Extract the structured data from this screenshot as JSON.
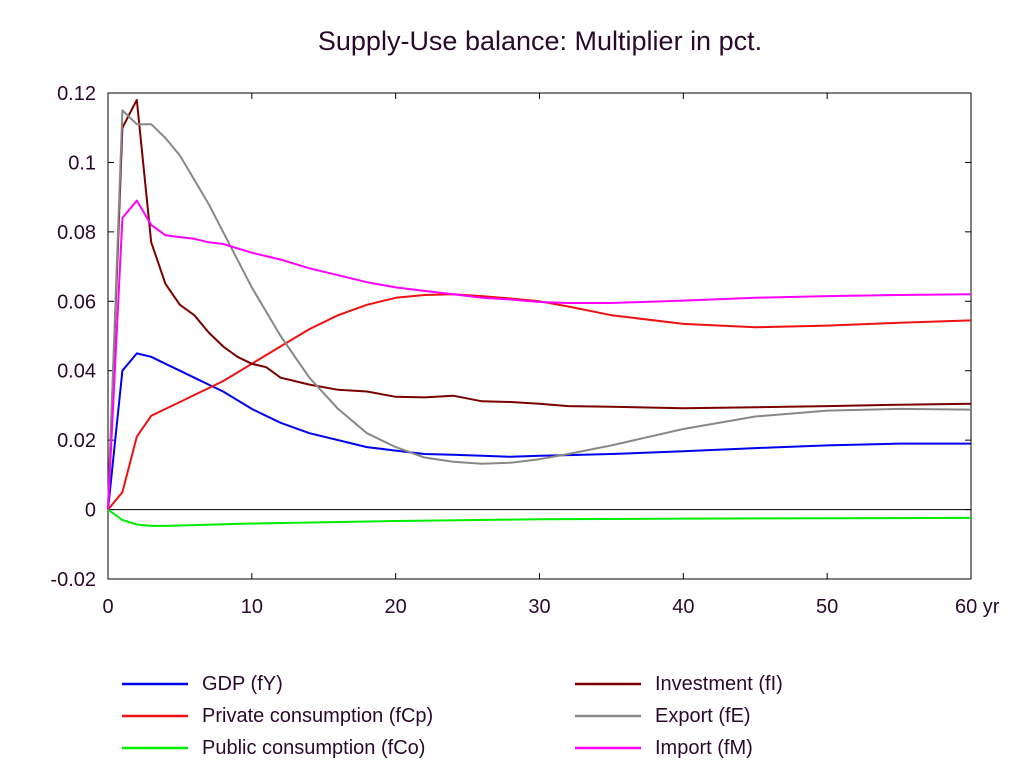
{
  "chart_data": {
    "type": "line",
    "title": "Supply-Use balance: Multiplier in pct.",
    "xlabel": "",
    "ylabel": "",
    "xlim": [
      0,
      60
    ],
    "ylim": [
      -0.02,
      0.12
    ],
    "x_ticks": [
      0,
      10,
      20,
      30,
      40,
      50,
      60
    ],
    "x_tick_labels": [
      "0",
      "10",
      "20",
      "30",
      "40",
      "50",
      "60 yr"
    ],
    "y_ticks": [
      -0.02,
      0,
      0.02,
      0.04,
      0.06,
      0.08,
      0.1,
      0.12
    ],
    "y_tick_labels": [
      "-0.02",
      "0",
      "0.02",
      "0.04",
      "0.06",
      "0.08",
      "0.1",
      "0.12"
    ],
    "grid": false,
    "zero_line": true,
    "legend_position": "bottom",
    "series": [
      {
        "name": "GDP (fY)",
        "color": "#0000ee",
        "x": [
          0,
          1,
          2,
          3,
          4,
          5,
          6,
          7,
          8,
          10,
          12,
          14,
          16,
          18,
          20,
          22,
          24,
          26,
          28,
          30,
          32,
          35,
          40,
          45,
          50,
          55,
          60
        ],
        "y": [
          0,
          0.04,
          0.045,
          0.044,
          0.042,
          0.04,
          0.038,
          0.036,
          0.034,
          0.029,
          0.025,
          0.022,
          0.02,
          0.018,
          0.017,
          0.016,
          0.0158,
          0.0155,
          0.0152,
          0.0155,
          0.0157,
          0.016,
          0.0168,
          0.0177,
          0.0185,
          0.019,
          0.019
        ]
      },
      {
        "name": "Private consumption (fCp)",
        "color": "#ee1111",
        "x": [
          0,
          1,
          2,
          3,
          4,
          5,
          6,
          7,
          8,
          10,
          12,
          14,
          16,
          18,
          20,
          22,
          24,
          26,
          28,
          30,
          32,
          35,
          40,
          45,
          50,
          55,
          60
        ],
        "y": [
          0,
          0.005,
          0.021,
          0.027,
          0.029,
          0.031,
          0.033,
          0.035,
          0.037,
          0.042,
          0.047,
          0.052,
          0.056,
          0.059,
          0.061,
          0.0618,
          0.062,
          0.0615,
          0.0608,
          0.06,
          0.0585,
          0.056,
          0.0535,
          0.0525,
          0.053,
          0.0538,
          0.0545
        ]
      },
      {
        "name": "Public consumption (fCo)",
        "color": "#00ee00",
        "x": [
          0,
          1,
          2,
          3,
          4,
          5,
          10,
          20,
          30,
          40,
          50,
          60
        ],
        "y": [
          0,
          -0.003,
          -0.0043,
          -0.0047,
          -0.0047,
          -0.0046,
          -0.004,
          -0.0033,
          -0.0028,
          -0.0026,
          -0.0025,
          -0.0024
        ]
      },
      {
        "name": "Investment (fI)",
        "color": "#7a0000",
        "x": [
          0,
          1,
          2,
          3,
          4,
          5,
          6,
          7,
          8,
          9,
          10,
          11,
          12,
          13,
          14,
          16,
          18,
          20,
          22,
          24,
          26,
          28,
          30,
          32,
          35,
          40,
          45,
          50,
          55,
          60
        ],
        "y": [
          0,
          0.11,
          0.118,
          0.077,
          0.065,
          0.059,
          0.056,
          0.051,
          0.047,
          0.044,
          0.042,
          0.041,
          0.038,
          0.037,
          0.036,
          0.0345,
          0.034,
          0.0325,
          0.0323,
          0.0328,
          0.0312,
          0.031,
          0.0305,
          0.0298,
          0.0296,
          0.0292,
          0.0295,
          0.0298,
          0.0302,
          0.0305
        ]
      },
      {
        "name": "Export (fE)",
        "color": "#888888",
        "x": [
          0,
          1,
          2,
          3,
          4,
          5,
          6,
          7,
          8,
          10,
          12,
          14,
          16,
          18,
          20,
          22,
          24,
          26,
          28,
          30,
          32,
          35,
          40,
          45,
          50,
          55,
          60
        ],
        "y": [
          0,
          0.115,
          0.111,
          0.111,
          0.107,
          0.102,
          0.095,
          0.088,
          0.08,
          0.064,
          0.05,
          0.038,
          0.029,
          0.022,
          0.018,
          0.015,
          0.0138,
          0.0132,
          0.0135,
          0.0145,
          0.016,
          0.0185,
          0.0232,
          0.0268,
          0.0285,
          0.029,
          0.0288
        ]
      },
      {
        "name": "Import (fM)",
        "color": "#ff00ff",
        "x": [
          0,
          1,
          2,
          3,
          4,
          5,
          6,
          7,
          8,
          10,
          12,
          14,
          16,
          18,
          20,
          22,
          24,
          26,
          28,
          30,
          32,
          35,
          40,
          45,
          50,
          55,
          60
        ],
        "y": [
          0,
          0.084,
          0.089,
          0.082,
          0.079,
          0.0785,
          0.078,
          0.077,
          0.0765,
          0.074,
          0.072,
          0.0695,
          0.0675,
          0.0655,
          0.064,
          0.063,
          0.062,
          0.061,
          0.0605,
          0.0598,
          0.0595,
          0.0595,
          0.0602,
          0.061,
          0.0615,
          0.0618,
          0.062
        ]
      }
    ]
  }
}
